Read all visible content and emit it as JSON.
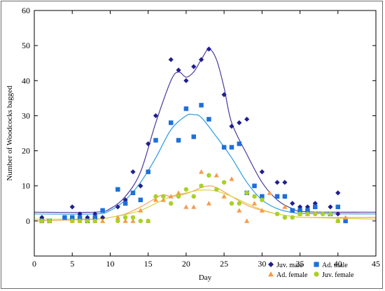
{
  "chart_data": {
    "type": "scatter",
    "title": "",
    "xlabel": "Day",
    "ylabel": "Number of Woodcocks bagged",
    "xlim": [
      0,
      45
    ],
    "ylim": [
      -10,
      60
    ],
    "x_ticks": [
      0,
      5,
      10,
      15,
      20,
      25,
      30,
      35,
      40,
      45
    ],
    "y_ticks": [
      0,
      10,
      20,
      30,
      40,
      50,
      60
    ],
    "grid": false,
    "legend_position": "bottom-right",
    "series": [
      {
        "name": "Juv. male",
        "marker": "diamond",
        "color": "#1f1f8f",
        "line_color": "#4b3a9c",
        "points": [
          [
            1,
            1
          ],
          [
            5,
            4
          ],
          [
            6,
            2
          ],
          [
            7,
            1
          ],
          [
            8,
            2
          ],
          [
            9,
            1
          ],
          [
            11,
            4
          ],
          [
            12,
            6
          ],
          [
            13,
            14
          ],
          [
            14,
            10
          ],
          [
            15,
            22
          ],
          [
            16,
            30
          ],
          [
            18,
            46
          ],
          [
            19,
            43
          ],
          [
            20,
            40
          ],
          [
            21,
            44
          ],
          [
            22,
            46
          ],
          [
            23,
            49
          ],
          [
            25,
            36
          ],
          [
            26,
            27
          ],
          [
            27,
            28
          ],
          [
            28,
            29
          ],
          [
            30,
            14
          ],
          [
            32,
            11
          ],
          [
            33,
            11
          ],
          [
            34,
            5
          ],
          [
            35,
            4
          ],
          [
            36,
            4
          ],
          [
            37,
            5
          ],
          [
            39,
            4
          ],
          [
            40,
            8
          ],
          [
            40,
            2
          ]
        ],
        "curve": [
          [
            0,
            2.5
          ],
          [
            8,
            2.5
          ],
          [
            10,
            3.5
          ],
          [
            12,
            7
          ],
          [
            14,
            14
          ],
          [
            16,
            28
          ],
          [
            18,
            40
          ],
          [
            19,
            42.5
          ],
          [
            20,
            41
          ],
          [
            21,
            42.5
          ],
          [
            22,
            46
          ],
          [
            23,
            49
          ],
          [
            24,
            46
          ],
          [
            25,
            38
          ],
          [
            26,
            28
          ],
          [
            28,
            19
          ],
          [
            30,
            11
          ],
          [
            32,
            6
          ],
          [
            34,
            3.5
          ],
          [
            36,
            2.6
          ],
          [
            45,
            2.5
          ]
        ]
      },
      {
        "name": "Ad. male",
        "marker": "square",
        "color": "#1e6fd9",
        "line_color": "#2e9be0",
        "points": [
          [
            1,
            0
          ],
          [
            2,
            0
          ],
          [
            4,
            1
          ],
          [
            5,
            1
          ],
          [
            6,
            1
          ],
          [
            7,
            0
          ],
          [
            8,
            1
          ],
          [
            9,
            3
          ],
          [
            11,
            9
          ],
          [
            12,
            5
          ],
          [
            13,
            8
          ],
          [
            14,
            6
          ],
          [
            15,
            14
          ],
          [
            16,
            23
          ],
          [
            18,
            28
          ],
          [
            19,
            23
          ],
          [
            20,
            32
          ],
          [
            21,
            24
          ],
          [
            22,
            33
          ],
          [
            23,
            29
          ],
          [
            25,
            21
          ],
          [
            26,
            21
          ],
          [
            27,
            22
          ],
          [
            28,
            8
          ],
          [
            29,
            10
          ],
          [
            30,
            7
          ],
          [
            32,
            7
          ],
          [
            33,
            7
          ],
          [
            34,
            3
          ],
          [
            35,
            3
          ],
          [
            36,
            3
          ],
          [
            37,
            4
          ],
          [
            39,
            2
          ],
          [
            40,
            4
          ],
          [
            41,
            0
          ]
        ],
        "curve": [
          [
            0,
            2
          ],
          [
            8,
            2
          ],
          [
            10,
            3
          ],
          [
            12,
            6
          ],
          [
            14,
            11
          ],
          [
            16,
            18
          ],
          [
            18,
            26
          ],
          [
            20,
            30
          ],
          [
            21,
            30.3
          ],
          [
            22,
            29.5
          ],
          [
            24,
            24
          ],
          [
            26,
            18
          ],
          [
            28,
            11
          ],
          [
            30,
            6
          ],
          [
            32,
            3.5
          ],
          [
            34,
            2.4
          ],
          [
            36,
            2.1
          ],
          [
            45,
            2
          ]
        ]
      },
      {
        "name": "Ad. female",
        "marker": "triangle",
        "color": "#f59b4c",
        "line_color": "#f5a35a",
        "points": [
          [
            1,
            0
          ],
          [
            2,
            0
          ],
          [
            5,
            0
          ],
          [
            6,
            0
          ],
          [
            8,
            0
          ],
          [
            9,
            0
          ],
          [
            11,
            1
          ],
          [
            12,
            0
          ],
          [
            13,
            0
          ],
          [
            14,
            3
          ],
          [
            15,
            0
          ],
          [
            16,
            6
          ],
          [
            17,
            6
          ],
          [
            18,
            7
          ],
          [
            19,
            8
          ],
          [
            20,
            4
          ],
          [
            21,
            4
          ],
          [
            22,
            14
          ],
          [
            23,
            5
          ],
          [
            24,
            13
          ],
          [
            25,
            7
          ],
          [
            26,
            12
          ],
          [
            27,
            3
          ],
          [
            28,
            0
          ],
          [
            29,
            5
          ],
          [
            30,
            3
          ],
          [
            31,
            8
          ],
          [
            33,
            4
          ],
          [
            35,
            2
          ],
          [
            36,
            2
          ],
          [
            40,
            0
          ],
          [
            41,
            1
          ]
        ],
        "curve": [
          [
            0,
            0
          ],
          [
            8,
            0.5
          ],
          [
            10,
            1
          ],
          [
            12,
            2
          ],
          [
            14,
            4
          ],
          [
            16,
            6.5
          ],
          [
            17,
            7.5
          ],
          [
            18,
            7
          ],
          [
            20,
            7.8
          ],
          [
            22,
            9.5
          ],
          [
            23,
            10
          ],
          [
            24,
            9.5
          ],
          [
            26,
            7
          ],
          [
            28,
            4.5
          ],
          [
            30,
            3
          ],
          [
            32,
            2
          ],
          [
            34,
            1.3
          ],
          [
            36,
            1
          ],
          [
            45,
            1
          ]
        ]
      },
      {
        "name": "Juv. female",
        "marker": "circle",
        "color": "#a9d126",
        "line_color": "#d6d640",
        "points": [
          [
            1,
            0
          ],
          [
            2,
            0
          ],
          [
            5,
            0
          ],
          [
            6,
            0
          ],
          [
            7,
            0
          ],
          [
            8,
            0
          ],
          [
            11,
            0
          ],
          [
            12,
            1
          ],
          [
            13,
            1
          ],
          [
            14,
            0
          ],
          [
            15,
            0
          ],
          [
            16,
            7
          ],
          [
            17,
            7
          ],
          [
            18,
            5
          ],
          [
            19,
            7
          ],
          [
            20,
            9
          ],
          [
            21,
            7
          ],
          [
            22,
            10
          ],
          [
            23,
            13
          ],
          [
            24,
            9
          ],
          [
            25,
            11
          ],
          [
            26,
            5
          ],
          [
            27,
            5
          ],
          [
            28,
            8
          ],
          [
            29,
            7
          ],
          [
            30,
            6
          ],
          [
            32,
            2
          ],
          [
            33,
            1
          ],
          [
            34,
            1
          ],
          [
            35,
            2
          ],
          [
            36,
            2
          ],
          [
            37,
            2
          ],
          [
            38,
            2
          ],
          [
            39,
            2
          ],
          [
            40,
            0
          ]
        ],
        "curve": [
          [
            0,
            0.5
          ],
          [
            8,
            0.6
          ],
          [
            10,
            1
          ],
          [
            12,
            1.8
          ],
          [
            14,
            3
          ],
          [
            16,
            5
          ],
          [
            18,
            7
          ],
          [
            20,
            8
          ],
          [
            22,
            8.8
          ],
          [
            24,
            8.5
          ],
          [
            26,
            7
          ],
          [
            28,
            5
          ],
          [
            30,
            3.2
          ],
          [
            32,
            2
          ],
          [
            34,
            1.3
          ],
          [
            36,
            1
          ],
          [
            45,
            0.5
          ]
        ]
      }
    ]
  }
}
